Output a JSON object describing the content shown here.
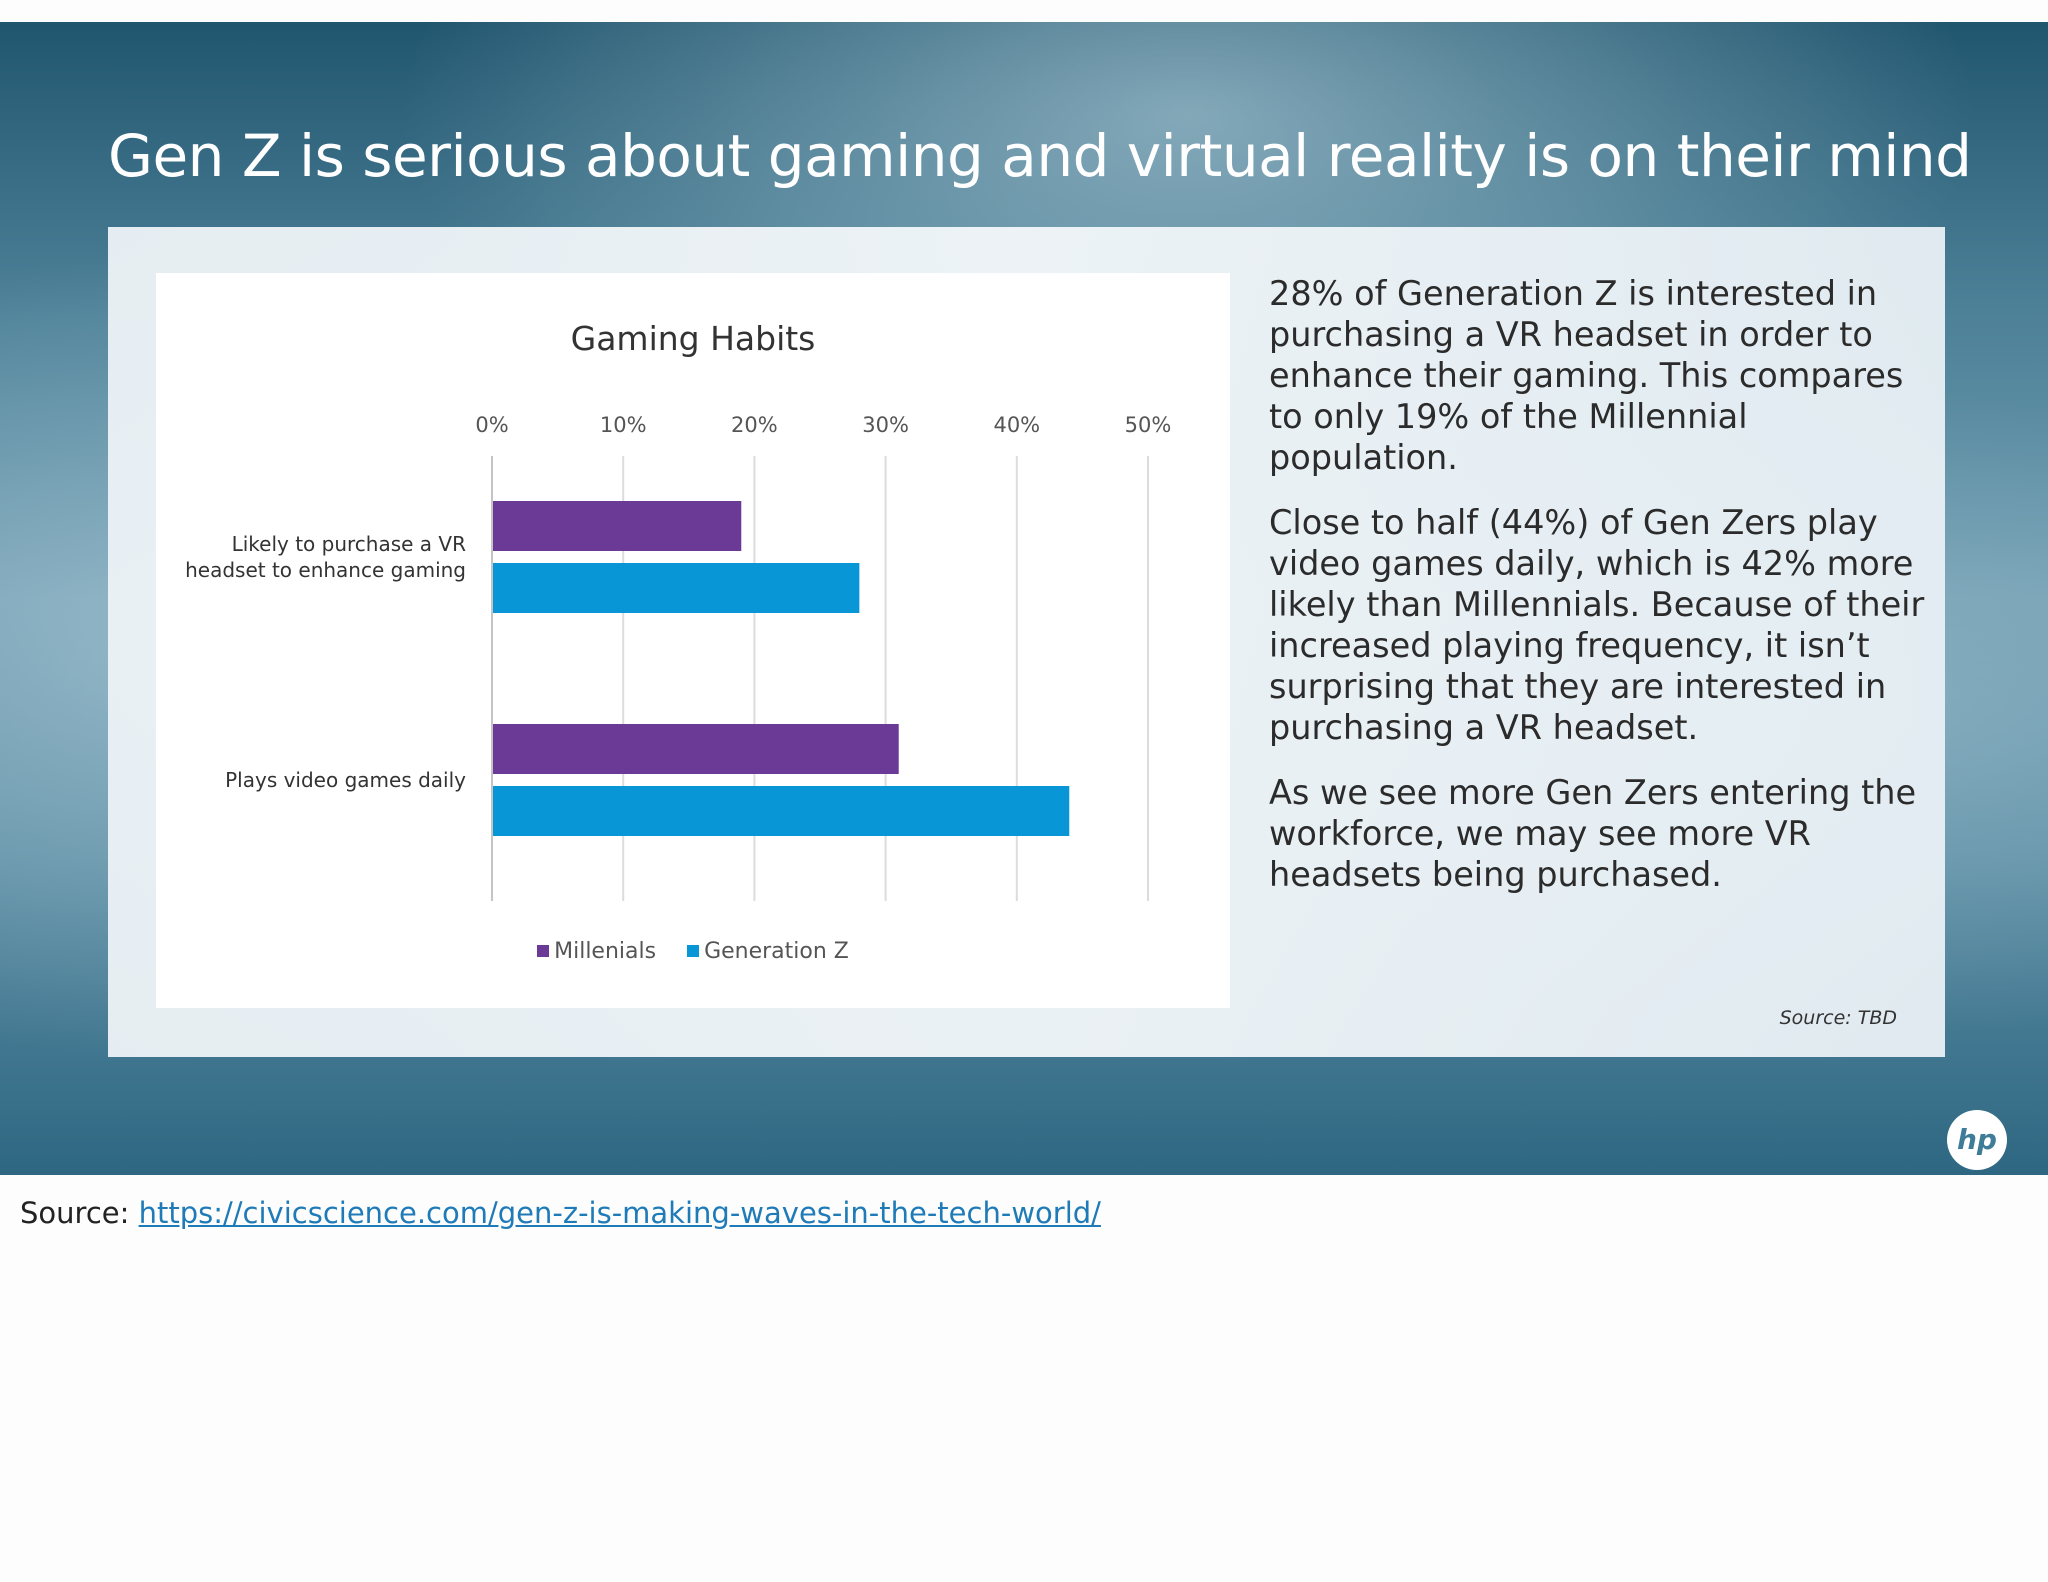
{
  "slide": {
    "title": "Gen Z is serious about gaming and virtual reality is on their mind",
    "paragraphs": [
      "28% of Generation Z is interested in purchasing a VR headset in order to enhance their gaming. This compares to only 19% of the Millennial population.",
      "Close to half (44%) of Gen Zers play video games daily, which is 42% more likely than Millennials. Because of their increased playing frequency, it isn’t surprising that they are interested in purchasing a VR headset.",
      "As we see more Gen Zers entering the workforce, we may see more VR headsets being purchased."
    ],
    "panel_source": "Source: TBD",
    "logo_text": "hp",
    "logo_icon": "hp-logo-icon"
  },
  "page_source": {
    "label": "Source:",
    "link_text": "https://civicscience.com/gen-z-is-making-waves-in-the-tech-world/"
  },
  "colors": {
    "millenials": "#6b3a96",
    "generation_z": "#0896d6",
    "link": "#1f7bb8"
  },
  "chart_data": {
    "type": "bar",
    "orientation": "horizontal",
    "title": "Gaming Habits",
    "categories": [
      "Likely to purchase a VR headset to enhance gaming",
      "Plays video games daily"
    ],
    "category_labels": [
      [
        "Likely to purchase a VR",
        "headset to enhance gaming"
      ],
      [
        "Plays video games daily"
      ]
    ],
    "series": [
      {
        "name": "Millenials",
        "values": [
          19,
          31
        ]
      },
      {
        "name": "Generation Z",
        "values": [
          28,
          44
        ]
      }
    ],
    "xlim": [
      0,
      50
    ],
    "xticks": [
      "0%",
      "10%",
      "20%",
      "30%",
      "40%",
      "50%"
    ],
    "x_axis_position": "top",
    "grid": true,
    "legend": "bottom"
  }
}
